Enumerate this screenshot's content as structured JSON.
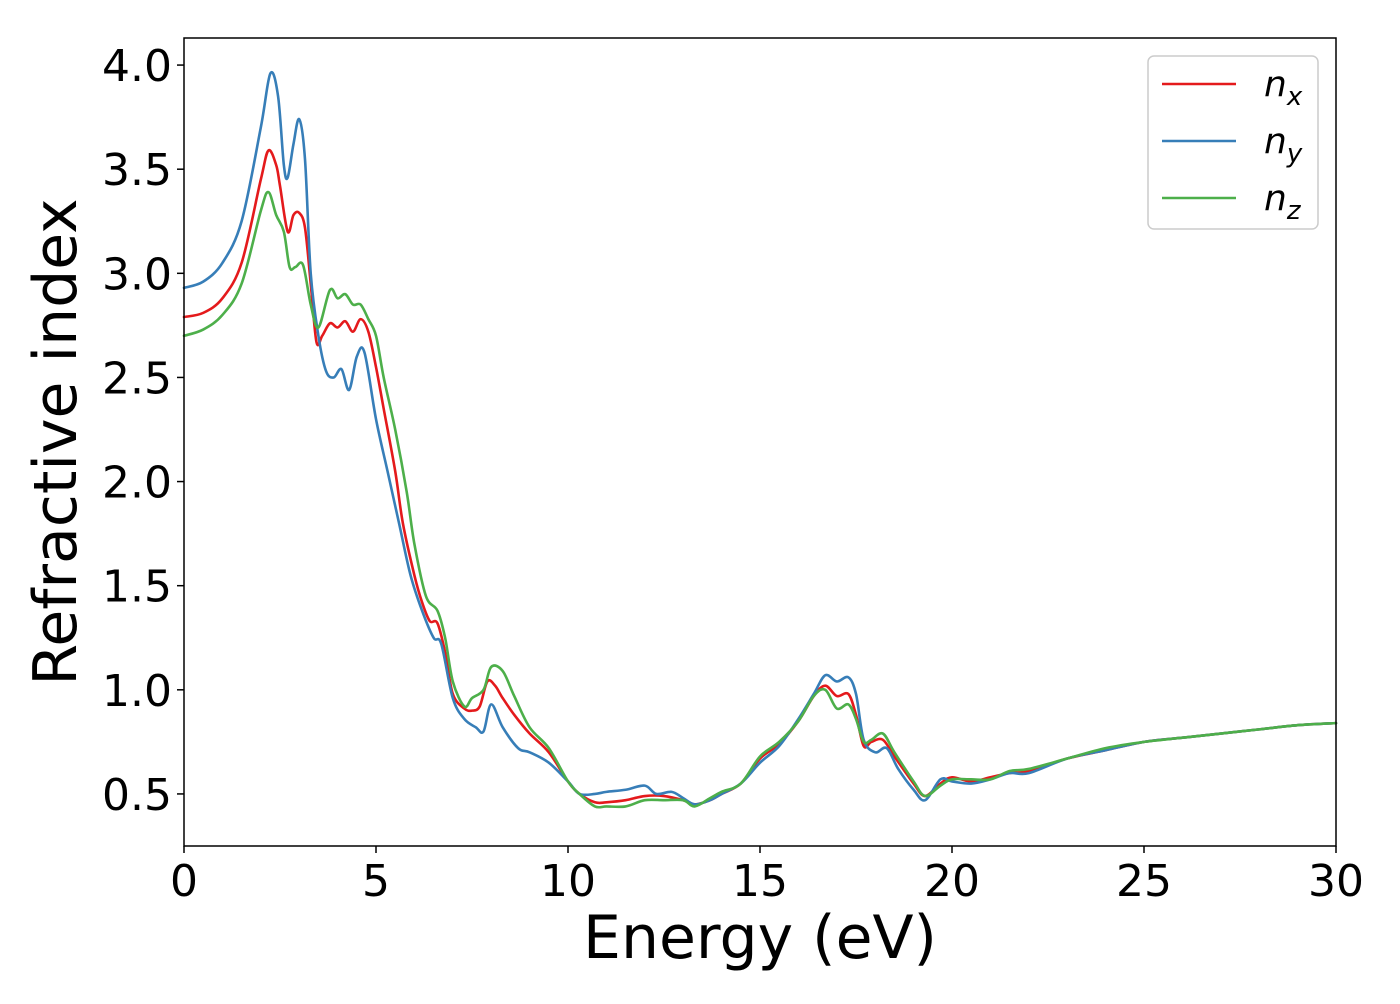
{
  "chart_data": {
    "type": "line",
    "title": "",
    "xlabel": "Energy (eV)",
    "ylabel": "Refractive index",
    "xlim": [
      0,
      30
    ],
    "ylim": [
      0.25,
      4.13
    ],
    "xticks": [
      0,
      5,
      10,
      15,
      20,
      25,
      30
    ],
    "xtick_labels": [
      "0",
      "5",
      "10",
      "15",
      "20",
      "25",
      "30"
    ],
    "yticks": [
      0.5,
      1.0,
      1.5,
      2.0,
      2.5,
      3.0,
      3.5,
      4.0
    ],
    "ytick_labels": [
      "0.5",
      "1.0",
      "1.5",
      "2.0",
      "2.5",
      "3.0",
      "3.5",
      "4.0"
    ],
    "grid": false,
    "legend_position": "top-right",
    "legend": [
      {
        "base": "n",
        "sub": "x",
        "color": "#e41a1c"
      },
      {
        "base": "n",
        "sub": "y",
        "color": "#377eb8"
      },
      {
        "base": "n",
        "sub": "z",
        "color": "#4daf4a"
      }
    ],
    "series": [
      {
        "name": "n_x",
        "color": "#e41a1c",
        "points": [
          [
            0,
            2.79
          ],
          [
            0.5,
            2.81
          ],
          [
            1.0,
            2.88
          ],
          [
            1.5,
            3.05
          ],
          [
            2.0,
            3.45
          ],
          [
            2.2,
            3.59
          ],
          [
            2.4,
            3.52
          ],
          [
            2.5,
            3.42
          ],
          [
            2.7,
            3.2
          ],
          [
            2.85,
            3.28
          ],
          [
            3.0,
            3.29
          ],
          [
            3.15,
            3.22
          ],
          [
            3.3,
            2.95
          ],
          [
            3.45,
            2.67
          ],
          [
            3.6,
            2.7
          ],
          [
            3.8,
            2.76
          ],
          [
            4.0,
            2.74
          ],
          [
            4.2,
            2.77
          ],
          [
            4.4,
            2.72
          ],
          [
            4.6,
            2.78
          ],
          [
            4.8,
            2.72
          ],
          [
            5.0,
            2.55
          ],
          [
            5.2,
            2.35
          ],
          [
            5.5,
            2.05
          ],
          [
            5.7,
            1.8
          ],
          [
            6.0,
            1.55
          ],
          [
            6.2,
            1.42
          ],
          [
            6.4,
            1.33
          ],
          [
            6.6,
            1.32
          ],
          [
            6.8,
            1.18
          ],
          [
            7.0,
            0.98
          ],
          [
            7.3,
            0.91
          ],
          [
            7.5,
            0.9
          ],
          [
            7.7,
            0.92
          ],
          [
            7.9,
            1.04
          ],
          [
            8.1,
            1.02
          ],
          [
            8.3,
            0.96
          ],
          [
            8.6,
            0.88
          ],
          [
            9.0,
            0.79
          ],
          [
            9.5,
            0.7
          ],
          [
            10.0,
            0.56
          ],
          [
            10.3,
            0.5
          ],
          [
            10.7,
            0.46
          ],
          [
            11.0,
            0.46
          ],
          [
            11.5,
            0.47
          ],
          [
            12.0,
            0.49
          ],
          [
            12.5,
            0.49
          ],
          [
            13.0,
            0.47
          ],
          [
            13.3,
            0.45
          ],
          [
            13.7,
            0.47
          ],
          [
            14.0,
            0.5
          ],
          [
            14.5,
            0.55
          ],
          [
            15.0,
            0.67
          ],
          [
            15.5,
            0.74
          ],
          [
            16.0,
            0.85
          ],
          [
            16.4,
            0.97
          ],
          [
            16.7,
            1.02
          ],
          [
            17.0,
            0.97
          ],
          [
            17.3,
            0.98
          ],
          [
            17.5,
            0.88
          ],
          [
            17.7,
            0.73
          ],
          [
            17.9,
            0.75
          ],
          [
            18.2,
            0.76
          ],
          [
            18.5,
            0.68
          ],
          [
            19.0,
            0.55
          ],
          [
            19.3,
            0.49
          ],
          [
            19.7,
            0.55
          ],
          [
            20.0,
            0.58
          ],
          [
            20.5,
            0.56
          ],
          [
            21.0,
            0.58
          ],
          [
            21.5,
            0.6
          ],
          [
            22.0,
            0.61
          ],
          [
            23.0,
            0.67
          ],
          [
            24.0,
            0.71
          ],
          [
            25.0,
            0.75
          ],
          [
            26.0,
            0.77
          ],
          [
            27.0,
            0.79
          ],
          [
            28.0,
            0.81
          ],
          [
            29.0,
            0.83
          ],
          [
            30.0,
            0.84
          ]
        ]
      },
      {
        "name": "n_y",
        "color": "#377eb8",
        "points": [
          [
            0,
            2.93
          ],
          [
            0.5,
            2.96
          ],
          [
            1.0,
            3.05
          ],
          [
            1.5,
            3.25
          ],
          [
            2.0,
            3.7
          ],
          [
            2.25,
            3.96
          ],
          [
            2.45,
            3.85
          ],
          [
            2.6,
            3.52
          ],
          [
            2.7,
            3.46
          ],
          [
            2.85,
            3.62
          ],
          [
            3.0,
            3.74
          ],
          [
            3.15,
            3.55
          ],
          [
            3.3,
            3.0
          ],
          [
            3.5,
            2.7
          ],
          [
            3.7,
            2.53
          ],
          [
            3.9,
            2.5
          ],
          [
            4.1,
            2.54
          ],
          [
            4.3,
            2.44
          ],
          [
            4.5,
            2.6
          ],
          [
            4.7,
            2.62
          ],
          [
            5.0,
            2.3
          ],
          [
            5.3,
            2.05
          ],
          [
            5.6,
            1.8
          ],
          [
            5.9,
            1.55
          ],
          [
            6.2,
            1.38
          ],
          [
            6.5,
            1.25
          ],
          [
            6.7,
            1.22
          ],
          [
            7.0,
            0.96
          ],
          [
            7.3,
            0.86
          ],
          [
            7.6,
            0.82
          ],
          [
            7.8,
            0.8
          ],
          [
            8.0,
            0.93
          ],
          [
            8.3,
            0.82
          ],
          [
            8.7,
            0.72
          ],
          [
            9.0,
            0.7
          ],
          [
            9.5,
            0.65
          ],
          [
            10.0,
            0.56
          ],
          [
            10.3,
            0.5
          ],
          [
            10.7,
            0.5
          ],
          [
            11.0,
            0.51
          ],
          [
            11.5,
            0.52
          ],
          [
            12.0,
            0.54
          ],
          [
            12.3,
            0.5
          ],
          [
            12.7,
            0.51
          ],
          [
            13.0,
            0.48
          ],
          [
            13.3,
            0.45
          ],
          [
            13.7,
            0.47
          ],
          [
            14.0,
            0.5
          ],
          [
            14.5,
            0.55
          ],
          [
            15.0,
            0.65
          ],
          [
            15.5,
            0.73
          ],
          [
            16.0,
            0.86
          ],
          [
            16.4,
            0.98
          ],
          [
            16.7,
            1.07
          ],
          [
            17.0,
            1.04
          ],
          [
            17.3,
            1.06
          ],
          [
            17.5,
            0.98
          ],
          [
            17.7,
            0.76
          ],
          [
            18.0,
            0.7
          ],
          [
            18.3,
            0.72
          ],
          [
            18.6,
            0.62
          ],
          [
            19.0,
            0.52
          ],
          [
            19.3,
            0.47
          ],
          [
            19.7,
            0.57
          ],
          [
            20.0,
            0.56
          ],
          [
            20.5,
            0.55
          ],
          [
            21.0,
            0.57
          ],
          [
            21.5,
            0.6
          ],
          [
            22.0,
            0.6
          ],
          [
            23.0,
            0.67
          ],
          [
            24.0,
            0.71
          ],
          [
            25.0,
            0.75
          ],
          [
            26.0,
            0.77
          ],
          [
            27.0,
            0.79
          ],
          [
            28.0,
            0.81
          ],
          [
            29.0,
            0.83
          ],
          [
            30.0,
            0.84
          ]
        ]
      },
      {
        "name": "n_z",
        "color": "#4daf4a",
        "points": [
          [
            0,
            2.7
          ],
          [
            0.5,
            2.73
          ],
          [
            1.0,
            2.8
          ],
          [
            1.5,
            2.95
          ],
          [
            2.0,
            3.3
          ],
          [
            2.2,
            3.39
          ],
          [
            2.4,
            3.28
          ],
          [
            2.6,
            3.2
          ],
          [
            2.75,
            3.03
          ],
          [
            2.9,
            3.03
          ],
          [
            3.1,
            3.04
          ],
          [
            3.3,
            2.85
          ],
          [
            3.5,
            2.74
          ],
          [
            3.8,
            2.92
          ],
          [
            4.0,
            2.88
          ],
          [
            4.2,
            2.9
          ],
          [
            4.4,
            2.85
          ],
          [
            4.6,
            2.85
          ],
          [
            4.8,
            2.78
          ],
          [
            5.0,
            2.7
          ],
          [
            5.2,
            2.5
          ],
          [
            5.5,
            2.25
          ],
          [
            5.8,
            1.95
          ],
          [
            6.0,
            1.7
          ],
          [
            6.3,
            1.45
          ],
          [
            6.6,
            1.38
          ],
          [
            6.8,
            1.25
          ],
          [
            7.0,
            1.04
          ],
          [
            7.3,
            0.92
          ],
          [
            7.5,
            0.96
          ],
          [
            7.8,
            1.0
          ],
          [
            8.0,
            1.11
          ],
          [
            8.3,
            1.09
          ],
          [
            8.6,
            0.97
          ],
          [
            9.0,
            0.82
          ],
          [
            9.5,
            0.72
          ],
          [
            10.0,
            0.56
          ],
          [
            10.3,
            0.5
          ],
          [
            10.7,
            0.44
          ],
          [
            11.0,
            0.44
          ],
          [
            11.5,
            0.44
          ],
          [
            12.0,
            0.47
          ],
          [
            12.5,
            0.47
          ],
          [
            13.0,
            0.47
          ],
          [
            13.3,
            0.44
          ],
          [
            13.7,
            0.48
          ],
          [
            14.0,
            0.51
          ],
          [
            14.5,
            0.55
          ],
          [
            15.0,
            0.68
          ],
          [
            15.5,
            0.75
          ],
          [
            16.0,
            0.85
          ],
          [
            16.4,
            0.97
          ],
          [
            16.7,
            1.0
          ],
          [
            17.0,
            0.91
          ],
          [
            17.3,
            0.93
          ],
          [
            17.5,
            0.86
          ],
          [
            17.7,
            0.75
          ],
          [
            17.9,
            0.76
          ],
          [
            18.2,
            0.79
          ],
          [
            18.5,
            0.7
          ],
          [
            19.0,
            0.56
          ],
          [
            19.3,
            0.49
          ],
          [
            19.7,
            0.54
          ],
          [
            20.0,
            0.57
          ],
          [
            20.5,
            0.57
          ],
          [
            21.0,
            0.57
          ],
          [
            21.5,
            0.61
          ],
          [
            22.0,
            0.62
          ],
          [
            23.0,
            0.67
          ],
          [
            24.0,
            0.72
          ],
          [
            25.0,
            0.75
          ],
          [
            26.0,
            0.77
          ],
          [
            27.0,
            0.79
          ],
          [
            28.0,
            0.81
          ],
          [
            29.0,
            0.83
          ],
          [
            30.0,
            0.84
          ]
        ]
      }
    ]
  }
}
